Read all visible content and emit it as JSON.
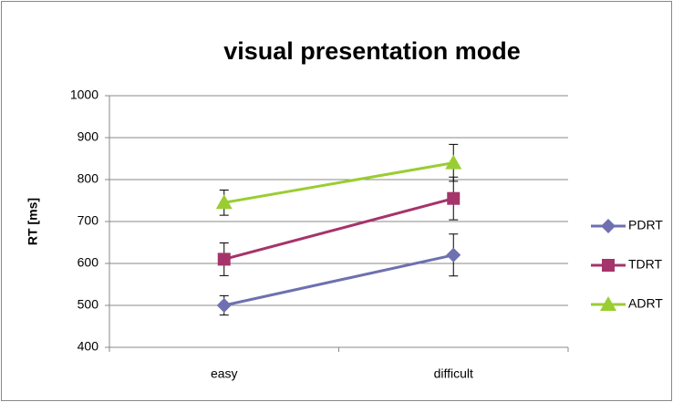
{
  "chart_data": {
    "type": "line",
    "title": "visual presentation mode",
    "y_label": "RT [ms]",
    "categories": [
      "easy",
      "difficult"
    ],
    "series": [
      {
        "name": "PDRT",
        "color": "#6e70b0",
        "marker": "diamond",
        "values": [
          500,
          620
        ],
        "errors": [
          23,
          50
        ]
      },
      {
        "name": "TDRT",
        "color": "#a5346a",
        "marker": "square",
        "values": [
          610,
          755
        ],
        "errors": [
          39,
          51
        ]
      },
      {
        "name": "ADRT",
        "color": "#9acd32",
        "marker": "triangle",
        "values": [
          745,
          840
        ],
        "errors": [
          30,
          44
        ]
      }
    ],
    "ylim": [
      400,
      1000
    ],
    "yticks": [
      400,
      500,
      600,
      700,
      800,
      900,
      1000
    ],
    "grid": true,
    "legend": "right"
  }
}
